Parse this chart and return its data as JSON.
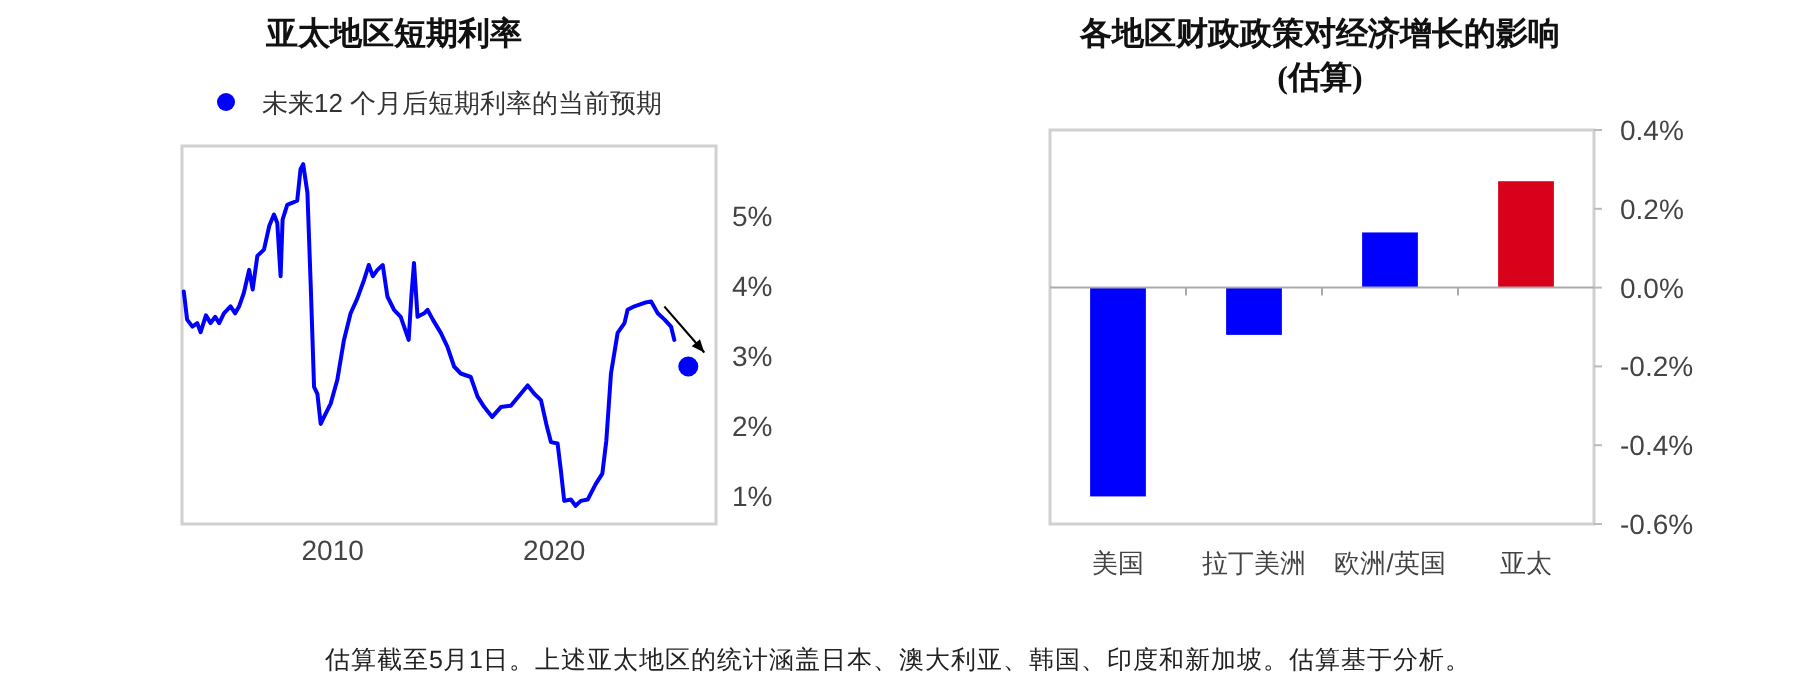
{
  "chart_data": [
    {
      "type": "line",
      "title": "亚太地区短期利率",
      "legend": "top left",
      "xlim": [
        2003.2,
        2027.3
      ],
      "ylim": [
        0.6,
        6.0
      ],
      "xticks": [
        2010,
        2020
      ],
      "yticks": [
        {
          "value": 1,
          "label": "1%"
        },
        {
          "value": 2,
          "label": "2%"
        },
        {
          "value": 3,
          "label": "3%"
        },
        {
          "value": 4,
          "label": "4%"
        },
        {
          "value": 5,
          "label": "5%"
        }
      ],
      "series": [
        {
          "type": "line",
          "color": "#0000ff",
          "x": [
            2003.28,
            2003.43,
            2003.67,
            2003.89,
            2004.04,
            2004.28,
            2004.49,
            2004.7,
            2004.88,
            2005.09,
            2005.39,
            2005.6,
            2005.78,
            2005.99,
            2006.23,
            2006.39,
            2006.6,
            2006.9,
            2007.14,
            2007.35,
            2007.5,
            2007.65,
            2007.74,
            2007.95,
            2008.19,
            2008.4,
            2008.55,
            2008.67,
            2008.86,
            2009.01,
            2009.16,
            2009.31,
            2009.46,
            2009.61,
            2009.91,
            2010.21,
            2010.51,
            2010.81,
            2011.11,
            2011.42,
            2011.63,
            2011.81,
            2012.02,
            2012.26,
            2012.47,
            2012.77,
            2013.07,
            2013.43,
            2013.55,
            2013.67,
            2013.83,
            2014.13,
            2014.28,
            2014.52,
            2014.88,
            2015.18,
            2015.48,
            2015.78,
            2016.23,
            2016.54,
            2016.84,
            2017.2,
            2017.59,
            2018.04,
            2018.49,
            2018.8,
            2019.1,
            2019.4,
            2019.64,
            2019.85,
            2020.15,
            2020.3,
            2020.45,
            2020.75,
            2020.96,
            2021.2,
            2021.51,
            2021.87,
            2022.17,
            2022.35,
            2022.56,
            2022.86,
            2023.17,
            2023.31,
            2023.62,
            2024.07,
            2024.37,
            2024.67,
            2024.98,
            2025.27,
            2025.42
          ],
          "values": [
            3.92,
            3.52,
            3.42,
            3.47,
            3.34,
            3.58,
            3.47,
            3.56,
            3.47,
            3.61,
            3.71,
            3.61,
            3.71,
            3.9,
            4.23,
            3.95,
            4.43,
            4.52,
            4.86,
            5.02,
            4.9,
            4.14,
            4.95,
            5.16,
            5.19,
            5.22,
            5.67,
            5.74,
            5.33,
            4.0,
            2.56,
            2.46,
            2.03,
            2.13,
            2.32,
            2.66,
            3.23,
            3.61,
            3.82,
            4.09,
            4.3,
            4.14,
            4.23,
            4.3,
            3.85,
            3.66,
            3.56,
            3.23,
            3.85,
            4.33,
            3.56,
            3.61,
            3.66,
            3.52,
            3.33,
            3.13,
            2.85,
            2.75,
            2.7,
            2.42,
            2.27,
            2.13,
            2.27,
            2.29,
            2.46,
            2.58,
            2.46,
            2.37,
            2.03,
            1.77,
            1.75,
            1.36,
            0.93,
            0.95,
            0.86,
            0.93,
            0.95,
            1.17,
            1.32,
            1.79,
            2.75,
            3.33,
            3.47,
            3.66,
            3.71,
            3.76,
            3.78,
            3.61,
            3.52,
            3.42,
            3.23
          ]
        },
        {
          "type": "scatter",
          "name": "未来12 个月后短期利率的当前预期",
          "color": "#0000ff",
          "marker": "circle",
          "x": [
            2026.05
          ],
          "values": [
            2.85
          ]
        }
      ]
    },
    {
      "type": "bar",
      "title": "各地区财政政策对经济增长的影响",
      "subtitle": "(估算)",
      "categories": [
        "美国",
        "拉丁美洲",
        "欧洲/英国",
        "亚太"
      ],
      "values": [
        -0.53,
        -0.12,
        0.14,
        0.27
      ],
      "colors": [
        "#0000ff",
        "#0000ff",
        "#0000ff",
        "#d9001b"
      ],
      "ylim": [
        -0.6,
        0.4
      ],
      "yticks": [
        {
          "value": -0.6,
          "label": "-0.6%"
        },
        {
          "value": -0.4,
          "label": "-0.4%"
        },
        {
          "value": -0.2,
          "label": "-0.2%"
        },
        {
          "value": 0,
          "label": "0.0%"
        },
        {
          "value": 0.2,
          "label": "0.2%"
        },
        {
          "value": 0.4,
          "label": "0.4%"
        }
      ],
      "annotations": [
        "估算截至5月1日。上述亚太地区的统计涵盖日本、澳大利亚、韩国、印度和新加坡。估算基于分析。"
      ]
    }
  ]
}
